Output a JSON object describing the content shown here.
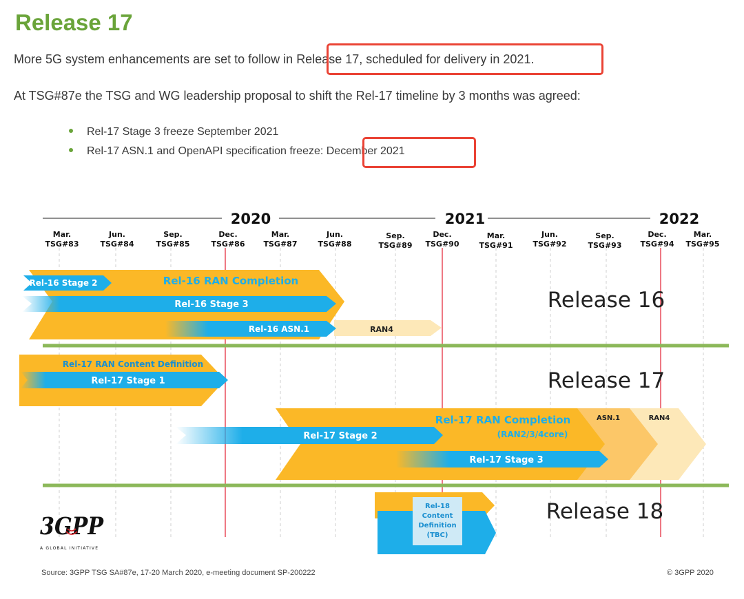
{
  "title": "Release 17",
  "paragraph1": {
    "before": "More 5G system enhancements are set to follow in ",
    "highlight": "Release 17, scheduled for delivery in 2021."
  },
  "paragraph2": "At TSG#87e the TSG and WG leadership proposal to shift the Rel-17 timeline by 3 months was agreed:",
  "bullets": [
    {
      "text": "Rel-17 Stage 3 freeze September 2021",
      "highlight": ""
    },
    {
      "text": "Rel-17 ASN.1 and OpenAPI specification freeze: ",
      "highlight": "December 2021"
    }
  ],
  "timeline": {
    "years": [
      "2020",
      "2021",
      "2022"
    ],
    "meetings": [
      {
        "month": "Mar.",
        "tsg": "TSG#83"
      },
      {
        "month": "Jun.",
        "tsg": "TSG#84"
      },
      {
        "month": "Sep.",
        "tsg": "TSG#85"
      },
      {
        "month": "Dec.",
        "tsg": "TSG#86"
      },
      {
        "month": "Mar.",
        "tsg": "TSG#87"
      },
      {
        "month": "Jun.",
        "tsg": "TSG#88"
      },
      {
        "month": "Sep.",
        "tsg": "TSG#89"
      },
      {
        "month": "Dec.",
        "tsg": "TSG#90"
      },
      {
        "month": "Mar.",
        "tsg": "TSG#91"
      },
      {
        "month": "Jun.",
        "tsg": "TSG#92"
      },
      {
        "month": "Sep.",
        "tsg": "TSG#93"
      },
      {
        "month": "Dec.",
        "tsg": "TSG#94"
      },
      {
        "month": "Mar.",
        "tsg": "TSG#95"
      }
    ],
    "release_labels": [
      "Release 16",
      "Release 17",
      "Release 18"
    ],
    "bars": {
      "rel16_stage2": "Rel-16 Stage 2",
      "rel16_ran_completion": "Rel-16 RAN Completion",
      "rel16_stage3": "Rel-16 Stage 3",
      "rel16_asn1": "Rel-16 ASN.1",
      "rel16_ran4": "RAN4",
      "rel17_ran_content": "Rel-17 RAN Content Definition",
      "rel17_stage1": "Rel-17 Stage 1",
      "rel17_ran_completion": "Rel-17 RAN Completion",
      "rel17_ran_completion_sub": "(RAN2/3/4core)",
      "rel17_asn1": "ASN.1",
      "rel17_ran4": "RAN4",
      "rel17_stage2": "Rel-17 Stage 2",
      "rel17_stage3": "Rel-17 Stage 3",
      "rel18_line1": "Rel-18",
      "rel18_line2": "Content",
      "rel18_line3": "Definition",
      "rel18_line4": "(TBC)"
    },
    "logo": {
      "mark": "3GPP",
      "tagline": "A GLOBAL INITIATIVE"
    },
    "colors": {
      "orange": "#fbb827",
      "blue": "#1eaee9",
      "peach": "#fde8b8",
      "green": "#8cb85a",
      "red": "#e84b5a"
    }
  },
  "footer": {
    "source": "Source: 3GPP TSG SA#87e, 17-20 March 2020, e-meeting document SP-200222",
    "copyright": "© 3GPP 2020"
  }
}
